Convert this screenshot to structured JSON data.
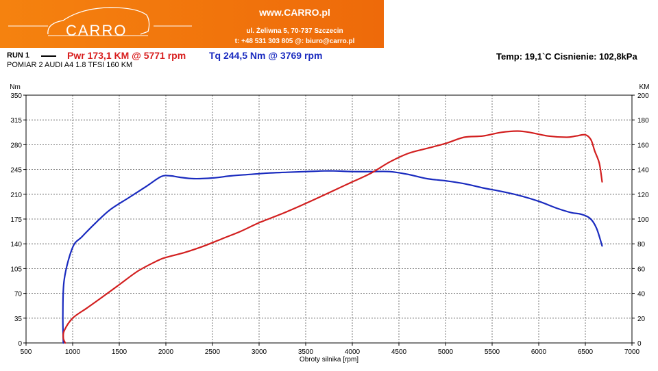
{
  "banner": {
    "brand": "CARRO",
    "site": "www.CARRO.pl",
    "address": "ul. Żeliwna 5, 70-737 Szczecin",
    "contact": "t: +48 531 303 805   @: biuro@carro.pl",
    "color": "#f07812"
  },
  "header": {
    "run": "RUN 1",
    "power_summary": "Pwr  173,1 KM @ 5771 rpm",
    "torque_summary": "Tq  244,5 Nm @ 3769 rpm",
    "conditions": "Temp: 19,1`C   Cisnienie: 102,8kPa",
    "measurement": "POMIAR 2 AUDI A4 1.8 TFSI 160 KM"
  },
  "chart_data": {
    "type": "line",
    "xlabel": "Obroty silnika [rpm]",
    "ylabel_left": "Nm",
    "ylabel_right": "KM",
    "xlim": [
      500,
      7000
    ],
    "xticks": [
      500,
      1000,
      1500,
      2000,
      2500,
      3000,
      3500,
      4000,
      4500,
      5000,
      5500,
      6000,
      6500,
      7000
    ],
    "ylim_left": [
      0,
      350
    ],
    "yticks_left": [
      0,
      35,
      70,
      105,
      140,
      175,
      210,
      245,
      280,
      315,
      350
    ],
    "ylim_right": [
      0,
      200
    ],
    "yticks_right": [
      0,
      20,
      40,
      60,
      80,
      100,
      120,
      140,
      160,
      180,
      200
    ],
    "grid": true,
    "series": [
      {
        "name": "Tq",
        "axis": "left",
        "color": "#1a2bbf",
        "x": [
          900,
          895,
          910,
          1000,
          1100,
          1250,
          1400,
          1600,
          1800,
          1950,
          2050,
          2150,
          2300,
          2500,
          2700,
          2900,
          3100,
          3300,
          3500,
          3700,
          3800,
          4000,
          4200,
          4400,
          4600,
          4800,
          5000,
          5200,
          5400,
          5600,
          5800,
          6000,
          6200,
          6350,
          6450,
          6550,
          6620,
          6680
        ],
        "y": [
          0,
          40,
          90,
          135,
          150,
          170,
          188,
          205,
          222,
          235,
          236,
          234,
          232,
          233,
          236,
          238,
          240,
          241,
          242,
          243,
          243,
          242,
          242,
          242,
          238,
          232,
          229,
          225,
          219,
          214,
          208,
          200,
          190,
          184,
          182,
          176,
          162,
          137
        ]
      },
      {
        "name": "Pwr",
        "axis": "right",
        "color": "#d21f1f",
        "x": [
          920,
          900,
          910,
          1000,
          1150,
          1300,
          1500,
          1700,
          1900,
          2000,
          2200,
          2400,
          2600,
          2800,
          3000,
          3300,
          3600,
          3800,
          4000,
          4200,
          4400,
          4600,
          4800,
          5000,
          5200,
          5400,
          5600,
          5771,
          5900,
          6100,
          6300,
          6400,
          6500,
          6560,
          6600,
          6650,
          6680
        ],
        "y": [
          0,
          4,
          10,
          20,
          28,
          36,
          47,
          58,
          66,
          69,
          73,
          78,
          84,
          90,
          97,
          106,
          116,
          123,
          130,
          137,
          146,
          153,
          157,
          161,
          166,
          167,
          170,
          171,
          170,
          167,
          166,
          167,
          168,
          164,
          155,
          145,
          130
        ]
      }
    ]
  }
}
